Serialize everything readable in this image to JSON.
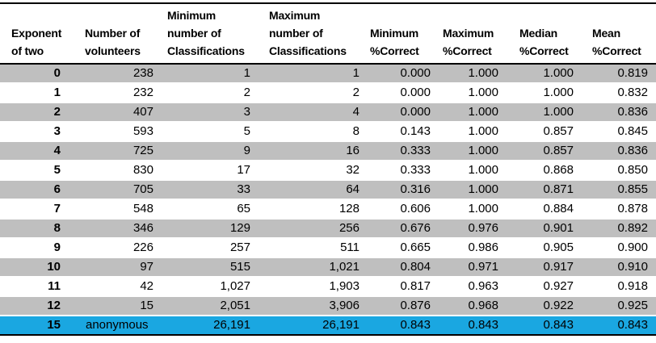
{
  "colors": {
    "row_shaded_gray": "#bfbfbf",
    "row_highlight_blue": "#1aa7e1",
    "rule_black": "#000000",
    "background": "#ffffff"
  },
  "table": {
    "column_keys": [
      "exponent-of-two",
      "number-of-volunteers",
      "min-classifications",
      "max-classifications",
      "min-pct-correct",
      "max-pct-correct",
      "median-pct-correct",
      "mean-pct-correct"
    ],
    "columns": [
      {
        "label": "Exponent\nof two"
      },
      {
        "label": "Number of\nvolunteers"
      },
      {
        "label": "Minimum\nnumber of\nClassifications"
      },
      {
        "label": "Maximum\nnumber of\nClassifications"
      },
      {
        "label": "Minimum\n%Correct"
      },
      {
        "label": "Maximum\n%Correct"
      },
      {
        "label": "Median\n%Correct"
      },
      {
        "label": "Mean\n%Correct"
      }
    ],
    "rows": [
      {
        "cells": [
          "0",
          "238",
          "1",
          "1",
          "0.000",
          "1.000",
          "1.000",
          "0.819"
        ],
        "highlight": false
      },
      {
        "cells": [
          "1",
          "232",
          "2",
          "2",
          "0.000",
          "1.000",
          "1.000",
          "0.832"
        ],
        "highlight": false
      },
      {
        "cells": [
          "2",
          "407",
          "3",
          "4",
          "0.000",
          "1.000",
          "1.000",
          "0.836"
        ],
        "highlight": false
      },
      {
        "cells": [
          "3",
          "593",
          "5",
          "8",
          "0.143",
          "1.000",
          "0.857",
          "0.845"
        ],
        "highlight": false
      },
      {
        "cells": [
          "4",
          "725",
          "9",
          "16",
          "0.333",
          "1.000",
          "0.857",
          "0.836"
        ],
        "highlight": false
      },
      {
        "cells": [
          "5",
          "830",
          "17",
          "32",
          "0.333",
          "1.000",
          "0.868",
          "0.850"
        ],
        "highlight": false
      },
      {
        "cells": [
          "6",
          "705",
          "33",
          "64",
          "0.316",
          "1.000",
          "0.871",
          "0.855"
        ],
        "highlight": false
      },
      {
        "cells": [
          "7",
          "548",
          "65",
          "128",
          "0.606",
          "1.000",
          "0.884",
          "0.878"
        ],
        "highlight": false
      },
      {
        "cells": [
          "8",
          "346",
          "129",
          "256",
          "0.676",
          "0.976",
          "0.901",
          "0.892"
        ],
        "highlight": false
      },
      {
        "cells": [
          "9",
          "226",
          "257",
          "511",
          "0.665",
          "0.986",
          "0.905",
          "0.900"
        ],
        "highlight": false
      },
      {
        "cells": [
          "10",
          "97",
          "515",
          "1,021",
          "0.804",
          "0.971",
          "0.917",
          "0.910"
        ],
        "highlight": false
      },
      {
        "cells": [
          "11",
          "42",
          "1,027",
          "1,903",
          "0.817",
          "0.963",
          "0.927",
          "0.918"
        ],
        "highlight": false
      },
      {
        "cells": [
          "12",
          "15",
          "2,051",
          "3,906",
          "0.876",
          "0.968",
          "0.922",
          "0.925"
        ],
        "highlight": false
      },
      {
        "cells": [
          "15",
          "anonymous",
          "26,191",
          "26,191",
          "0.843",
          "0.843",
          "0.843",
          "0.843"
        ],
        "highlight": true
      }
    ]
  },
  "chart_data": {
    "type": "table",
    "columns": [
      "Exponent of two",
      "Number of volunteers",
      "Minimum number of Classifications",
      "Maximum number of Classifications",
      "Minimum %Correct",
      "Maximum %Correct",
      "Median %Correct",
      "Mean %Correct"
    ],
    "rows": [
      [
        0,
        238,
        1,
        1,
        0.0,
        1.0,
        1.0,
        0.819
      ],
      [
        1,
        232,
        2,
        2,
        0.0,
        1.0,
        1.0,
        0.832
      ],
      [
        2,
        407,
        3,
        4,
        0.0,
        1.0,
        1.0,
        0.836
      ],
      [
        3,
        593,
        5,
        8,
        0.143,
        1.0,
        0.857,
        0.845
      ],
      [
        4,
        725,
        9,
        16,
        0.333,
        1.0,
        0.857,
        0.836
      ],
      [
        5,
        830,
        17,
        32,
        0.333,
        1.0,
        0.868,
        0.85
      ],
      [
        6,
        705,
        33,
        64,
        0.316,
        1.0,
        0.871,
        0.855
      ],
      [
        7,
        548,
        65,
        128,
        0.606,
        1.0,
        0.884,
        0.878
      ],
      [
        8,
        346,
        129,
        256,
        0.676,
        0.976,
        0.901,
        0.892
      ],
      [
        9,
        226,
        257,
        511,
        0.665,
        0.986,
        0.905,
        0.9
      ],
      [
        10,
        97,
        515,
        1021,
        0.804,
        0.971,
        0.917,
        0.91
      ],
      [
        11,
        42,
        1027,
        1903,
        0.817,
        0.963,
        0.927,
        0.918
      ],
      [
        12,
        15,
        2051,
        3906,
        0.876,
        0.968,
        0.922,
        0.925
      ],
      [
        15,
        "anonymous",
        26191,
        26191,
        0.843,
        0.843,
        0.843,
        0.843
      ]
    ],
    "highlighted_row_index": 13,
    "shading": "alternating gray/white rows starting gray; final anonymous row highlighted blue"
  }
}
